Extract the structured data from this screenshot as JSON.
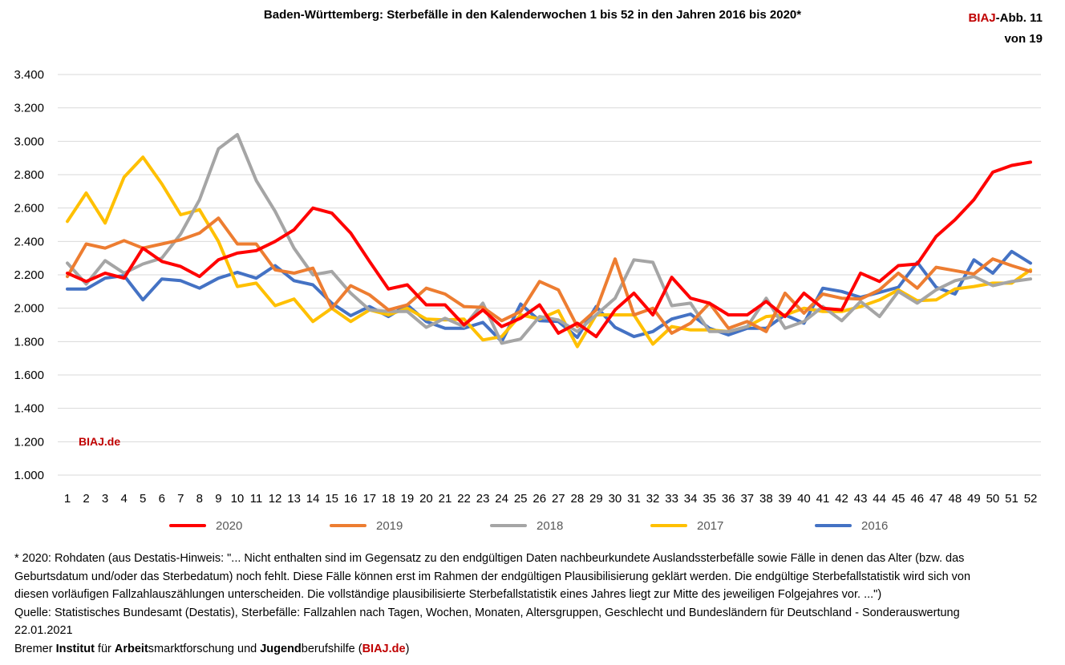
{
  "title": "Baden-Württemberg: Sterbefälle in den Kalenderwochen 1 bis 52 in den Jahren 2016 bis 2020*",
  "ref": {
    "brand": "BIAJ",
    "suffix": "-Abb. 11",
    "line2": "von 19"
  },
  "watermark": "BIAJ.de",
  "colors": {
    "2020": "#ff0000",
    "2019": "#ed7d31",
    "2018": "#a5a5a5",
    "2017": "#ffc000",
    "2016": "#4472c4",
    "brand": "#c00000"
  },
  "notes": {
    "line1": "* 2020: Rohdaten (aus Destatis-Hinweis: \"... Nicht enthalten sind im Gegensatz zu den endgültigen Daten nachbeurkundete Auslandssterbefälle sowie Fälle in denen das Alter (bzw. das",
    "line2": "Geburtsdatum und/oder das Sterbedatum) noch fehlt. Diese Fälle können erst im Rahmen der endgültigen Plausibilisierung geklärt werden. Die endgültige Sterbefallstatistik wird sich von",
    "line3": "diesen vorläufigen Fallzahlauszählungen unterscheiden. Die vollständige plausibilisierte Sterbefallstatistik eines Jahres liegt zur Mitte des jeweiligen Folgejahres vor. ...\")",
    "line4": "Quelle: Statistisches Bundesamt (Destatis), Sterbefälle: Fallzahlen nach Tagen, Wochen, Monaten, Altersgruppen, Geschlecht und Bundesländern für Deutschland - Sonderauswertung",
    "line5": "22.01.2021",
    "credit": {
      "p1": "Bremer ",
      "b1": "Institut",
      "p2": " für ",
      "b2": "Arbeit",
      "p3": "smarktforschung und ",
      "b3": "Jugend",
      "p4": "berufshilfe (",
      "link": "BIAJ.de",
      "p5": ")"
    }
  },
  "chart_data": {
    "type": "line",
    "title": "Baden-Württemberg: Sterbefälle in den Kalenderwochen 1 bis 52 in den Jahren 2016 bis 2020*",
    "xlabel": "",
    "ylabel": "",
    "ylim": [
      1000,
      3400
    ],
    "yticks": [
      1000,
      1200,
      1400,
      1600,
      1800,
      2000,
      2200,
      2400,
      2600,
      2800,
      3000,
      3200,
      3400
    ],
    "ytick_labels": [
      "1.000",
      "1.200",
      "1.400",
      "1.600",
      "1.800",
      "2.000",
      "2.200",
      "2.400",
      "2.600",
      "2.800",
      "3.000",
      "3.200",
      "3.400"
    ],
    "grid": true,
    "legend_position": "bottom",
    "categories": [
      "1",
      "2",
      "3",
      "4",
      "5",
      "6",
      "7",
      "8",
      "9",
      "10",
      "11",
      "12",
      "13",
      "14",
      "15",
      "16",
      "17",
      "18",
      "19",
      "20",
      "21",
      "22",
      "23",
      "24",
      "25",
      "26",
      "27",
      "28",
      "29",
      "30",
      "31",
      "32",
      "33",
      "34",
      "35",
      "36",
      "37",
      "38",
      "39",
      "40",
      "41",
      "42",
      "43",
      "44",
      "45",
      "46",
      "47",
      "48",
      "49",
      "50",
      "51",
      "52"
    ],
    "series": [
      {
        "name": "2020",
        "color": "#ff0000",
        "values": [
          2210,
          2160,
          2210,
          2180,
          2360,
          2280,
          2250,
          2190,
          2290,
          2330,
          2345,
          2400,
          2470,
          2600,
          2570,
          2450,
          2280,
          2115,
          2140,
          2020,
          2020,
          1900,
          1990,
          1890,
          1940,
          2020,
          1850,
          1910,
          1830,
          1990,
          2090,
          1960,
          2185,
          2060,
          2030,
          1960,
          1960,
          2040,
          1950,
          2090,
          2000,
          1990,
          2210,
          2160,
          2255,
          2265,
          2430,
          2530,
          2650,
          2815,
          2855,
          2875
        ]
      },
      {
        "name": "2019",
        "color": "#ed7d31",
        "values": [
          2190,
          2385,
          2360,
          2405,
          2360,
          2385,
          2410,
          2450,
          2540,
          2385,
          2385,
          2230,
          2210,
          2240,
          2000,
          2135,
          2080,
          1990,
          2020,
          2120,
          2085,
          2010,
          2005,
          1925,
          1980,
          2160,
          2110,
          1890,
          1990,
          2295,
          1960,
          2000,
          1850,
          1910,
          2030,
          1880,
          1920,
          1860,
          2090,
          1970,
          2085,
          2060,
          2055,
          2110,
          2210,
          2120,
          2245,
          2225,
          2205,
          2295,
          2255,
          2220
        ]
      },
      {
        "name": "2018",
        "color": "#a5a5a5",
        "values": [
          2270,
          2145,
          2285,
          2210,
          2265,
          2300,
          2445,
          2650,
          2955,
          3040,
          2765,
          2580,
          2360,
          2200,
          2220,
          2090,
          1990,
          1980,
          1980,
          1885,
          1940,
          1890,
          2030,
          1790,
          1815,
          1950,
          1930,
          1860,
          1960,
          2060,
          2290,
          2275,
          2015,
          2030,
          1860,
          1860,
          1890,
          2060,
          1880,
          1920,
          2010,
          1925,
          2040,
          1950,
          2100,
          2030,
          2110,
          2165,
          2190,
          2135,
          2160,
          2175
        ]
      },
      {
        "name": "2017",
        "color": "#ffc000",
        "values": [
          2520,
          2690,
          2510,
          2785,
          2905,
          2745,
          2560,
          2590,
          2400,
          2130,
          2150,
          2015,
          2055,
          1920,
          2000,
          1920,
          1990,
          1960,
          2000,
          1935,
          1930,
          1935,
          1810,
          1830,
          1960,
          1935,
          1985,
          1770,
          1960,
          1960,
          1960,
          1785,
          1890,
          1870,
          1870,
          1860,
          1890,
          1950,
          1960,
          2000,
          1980,
          1980,
          2010,
          2050,
          2110,
          2045,
          2050,
          2115,
          2130,
          2150,
          2150,
          2230
        ]
      },
      {
        "name": "2016",
        "color": "#4472c4",
        "values": [
          2115,
          2115,
          2180,
          2195,
          2050,
          2175,
          2165,
          2120,
          2180,
          2215,
          2180,
          2255,
          2165,
          2140,
          2030,
          1955,
          2010,
          1950,
          2020,
          1920,
          1880,
          1880,
          1915,
          1800,
          2025,
          1925,
          1920,
          1825,
          2010,
          1885,
          1830,
          1860,
          1935,
          1965,
          1880,
          1840,
          1880,
          1880,
          1960,
          1910,
          2120,
          2100,
          2065,
          2095,
          2125,
          2275,
          2125,
          2085,
          2290,
          2210,
          2340,
          2270
        ]
      }
    ]
  }
}
